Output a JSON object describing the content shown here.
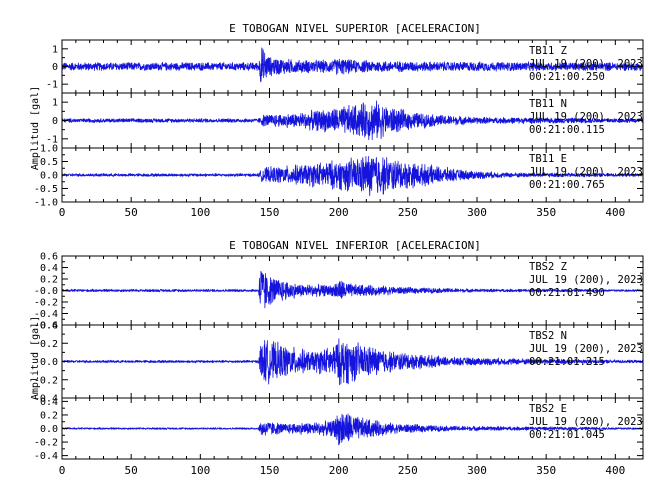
{
  "chart_data": [
    {
      "type": "line",
      "title": "E TOBOGAN NIVEL SUPERIOR [ACELERACION]",
      "ylabel": "Amplitud [gal]",
      "xlim": [
        0,
        420
      ],
      "xticks": [
        0,
        50,
        100,
        150,
        200,
        250,
        300,
        350,
        400
      ],
      "line_color": "#1414dc",
      "grid": false,
      "series": [
        {
          "name": "TB11 Z",
          "station": "TB11",
          "component": "Z",
          "date_line": "JUL 19 (200), 2023",
          "time_line": "00:21:00.250",
          "ylim": [
            -1.5,
            1.5
          ],
          "yticks": [
            -1,
            0,
            1
          ],
          "tick_labels": [
            "-1",
            "0",
            "1"
          ],
          "base_noise": 0.15,
          "envelope": [
            [
              0,
              0.25
            ],
            [
              142,
              0.25
            ],
            [
              144,
              1.3
            ],
            [
              150,
              0.6
            ],
            [
              170,
              0.4
            ],
            [
              195,
              0.4
            ],
            [
              200,
              0.55
            ],
            [
              210,
              0.4
            ],
            [
              260,
              0.3
            ],
            [
              420,
              0.25
            ]
          ]
        },
        {
          "name": "TB11 N",
          "station": "TB11",
          "component": "N",
          "date_line": "JUL 19 (200), 2023",
          "time_line": "00:21:00.115",
          "ylim": [
            -1.5,
            1.5
          ],
          "yticks": [
            -1,
            0,
            1
          ],
          "tick_labels": [
            "-1",
            "0",
            "1"
          ],
          "base_noise": 0.1,
          "envelope": [
            [
              0,
              0.12
            ],
            [
              142,
              0.12
            ],
            [
              145,
              0.35
            ],
            [
              170,
              0.45
            ],
            [
              200,
              0.8
            ],
            [
              215,
              1.0
            ],
            [
              225,
              1.25
            ],
            [
              235,
              0.9
            ],
            [
              250,
              0.55
            ],
            [
              270,
              0.35
            ],
            [
              300,
              0.2
            ],
            [
              420,
              0.12
            ]
          ]
        },
        {
          "name": "TB11 E",
          "station": "TB11",
          "component": "E",
          "date_line": "JUL 19 (200), 2023",
          "time_line": "00:21:00.765",
          "ylim": [
            -1.0,
            1.0
          ],
          "yticks": [
            -1.0,
            -0.5,
            0.0,
            0.5,
            1.0
          ],
          "tick_labels": [
            "-1.0",
            "-0.5",
            "0.0",
            "0.5",
            "1.0"
          ],
          "base_noise": 0.06,
          "envelope": [
            [
              0,
              0.06
            ],
            [
              142,
              0.06
            ],
            [
              145,
              0.3
            ],
            [
              170,
              0.4
            ],
            [
              200,
              0.6
            ],
            [
              215,
              0.75
            ],
            [
              225,
              0.95
            ],
            [
              240,
              0.65
            ],
            [
              260,
              0.45
            ],
            [
              290,
              0.2
            ],
            [
              320,
              0.1
            ],
            [
              420,
              0.06
            ]
          ]
        }
      ]
    },
    {
      "type": "line",
      "title": "E TOBOGAN NIVEL INFERIOR [ACELERACION]",
      "ylabel": "Amplitud [gal]",
      "xlim": [
        0,
        420
      ],
      "xticks": [
        0,
        50,
        100,
        150,
        200,
        250,
        300,
        350,
        400
      ],
      "line_color": "#1414dc",
      "grid": false,
      "series": [
        {
          "name": "TBS2 Z",
          "station": "TBS2",
          "component": "Z",
          "date_line": "JUL 19 (200), 2023",
          "time_line": "00:21:01.490",
          "ylim": [
            -0.6,
            0.6
          ],
          "yticks": [
            -0.6,
            -0.4,
            -0.2,
            0.0,
            0.2,
            0.4,
            0.6
          ],
          "tick_labels": [
            "-0.6",
            "-0.4",
            "-0.2",
            "-0.0",
            "0.2",
            "0.4",
            "0.6"
          ],
          "base_noise": 0.015,
          "envelope": [
            [
              0,
              0.025
            ],
            [
              142,
              0.025
            ],
            [
              143,
              0.55
            ],
            [
              150,
              0.28
            ],
            [
              170,
              0.13
            ],
            [
              195,
              0.1
            ],
            [
              200,
              0.22
            ],
            [
              210,
              0.12
            ],
            [
              250,
              0.06
            ],
            [
              300,
              0.03
            ],
            [
              420,
              0.02
            ]
          ]
        },
        {
          "name": "TBS2 N",
          "station": "TBS2",
          "component": "N",
          "date_line": "JUL 19 (200), 2023",
          "time_line": "00:21:01.215",
          "ylim": [
            -0.4,
            0.4
          ],
          "yticks": [
            -0.4,
            -0.2,
            0.0,
            0.2,
            0.4
          ],
          "tick_labels": [
            "-0.4",
            "-0.2",
            "0.0",
            "0.2",
            "0.4"
          ],
          "base_noise": 0.01,
          "envelope": [
            [
              0,
              0.015
            ],
            [
              142,
              0.015
            ],
            [
              144,
              0.28
            ],
            [
              160,
              0.2
            ],
            [
              180,
              0.12
            ],
            [
              195,
              0.18
            ],
            [
              202,
              0.3
            ],
            [
              215,
              0.22
            ],
            [
              240,
              0.12
            ],
            [
              280,
              0.05
            ],
            [
              420,
              0.015
            ]
          ]
        },
        {
          "name": "TBS2 E",
          "station": "TBS2",
          "component": "E",
          "date_line": "JUL 19 (200), 2023",
          "time_line": "00:21:01.045",
          "ylim": [
            -0.45,
            0.45
          ],
          "yticks": [
            -0.4,
            -0.2,
            0.0,
            0.2,
            0.4
          ],
          "tick_labels": [
            "-0.4",
            "-0.2",
            "0.0",
            "0.2",
            "0.4"
          ],
          "base_noise": 0.01,
          "envelope": [
            [
              0,
              0.015
            ],
            [
              142,
              0.015
            ],
            [
              144,
              0.14
            ],
            [
              160,
              0.08
            ],
            [
              195,
              0.12
            ],
            [
              202,
              0.32
            ],
            [
              215,
              0.18
            ],
            [
              240,
              0.08
            ],
            [
              280,
              0.04
            ],
            [
              420,
              0.015
            ]
          ]
        }
      ]
    }
  ]
}
